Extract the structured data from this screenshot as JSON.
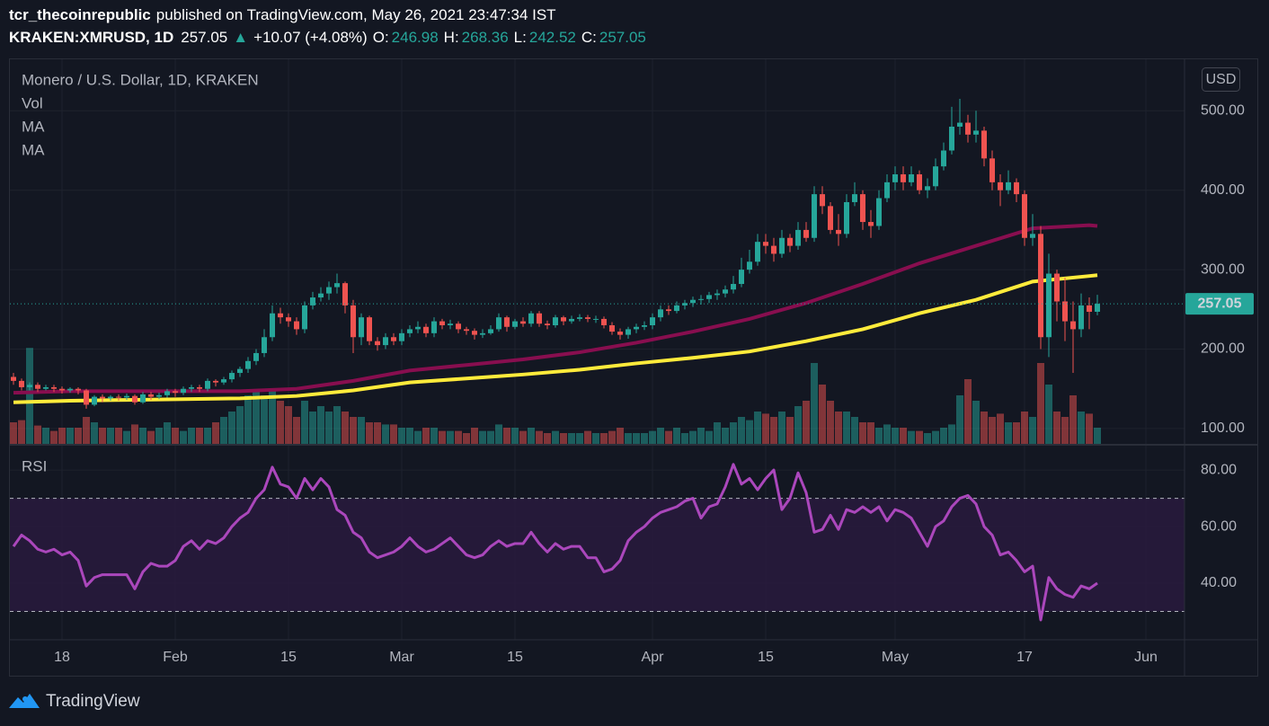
{
  "header": {
    "author": "tcr_thecoinrepublic",
    "published": "published on TradingView.com, May 26, 2021 23:47:34 IST",
    "symbol": "KRAKEN:XMRUSD, 1D",
    "last": "257.05",
    "arrow": "▲",
    "change": "+10.07 (+4.08%)",
    "o_label": "O:",
    "o": "246.98",
    "h_label": "H:",
    "h": "268.36",
    "l_label": "L:",
    "l": "242.52",
    "c_label": "C:",
    "c": "257.05"
  },
  "legend_title": "Monero / U.S. Dollar, 1D, KRAKEN",
  "currency": "USD",
  "brand": "TradingView",
  "chart_data": [
    {
      "type": "candlestick",
      "categories": [
        "Jan 12",
        "Jan 13",
        "Jan 14",
        "Jan 15",
        "Jan 16",
        "Jan 17",
        "Jan 18",
        "Jan 19",
        "Jan 20",
        "Jan 21",
        "Jan 22",
        "Jan 23",
        "Jan 24",
        "Jan 25",
        "Jan 26",
        "Jan 27",
        "Jan 28",
        "Jan 29",
        "Jan 30",
        "Jan 31",
        "Feb 1",
        "Feb 2",
        "Feb 3",
        "Feb 4",
        "Feb 5",
        "Feb 6",
        "Feb 7",
        "Feb 8",
        "Feb 9",
        "Feb 10",
        "Feb 11",
        "Feb 12",
        "Feb 13",
        "Feb 14",
        "Feb 15",
        "Feb 16",
        "Feb 17",
        "Feb 18",
        "Feb 19",
        "Feb 20",
        "Feb 21",
        "Feb 22",
        "Feb 23",
        "Feb 24",
        "Feb 25",
        "Feb 26",
        "Feb 27",
        "Feb 28",
        "Mar 1",
        "Mar 2",
        "Mar 3",
        "Mar 4",
        "Mar 5",
        "Mar 6",
        "Mar 7",
        "Mar 8",
        "Mar 9",
        "Mar 10",
        "Mar 11",
        "Mar 12",
        "Mar 13",
        "Mar 14",
        "Mar 15",
        "Mar 16",
        "Mar 17",
        "Mar 18",
        "Mar 19",
        "Mar 20",
        "Mar 21",
        "Mar 22",
        "Mar 23",
        "Mar 24",
        "Mar 25",
        "Mar 26",
        "Mar 27",
        "Mar 28",
        "Mar 29",
        "Mar 30",
        "Mar 31",
        "Apr 1",
        "Apr 2",
        "Apr 3",
        "Apr 4",
        "Apr 5",
        "Apr 6",
        "Apr 7",
        "Apr 8",
        "Apr 9",
        "Apr 10",
        "Apr 11",
        "Apr 12",
        "Apr 13",
        "Apr 14",
        "Apr 15",
        "Apr 16",
        "Apr 17",
        "Apr 18",
        "Apr 19",
        "Apr 20",
        "Apr 21",
        "Apr 22",
        "Apr 23",
        "Apr 24",
        "Apr 25",
        "Apr 26",
        "Apr 27",
        "Apr 28",
        "Apr 29",
        "Apr 30",
        "May 1",
        "May 2",
        "May 3",
        "May 4",
        "May 5",
        "May 6",
        "May 7",
        "May 8",
        "May 9",
        "May 10",
        "May 11",
        "May 12",
        "May 13",
        "May 14",
        "May 15",
        "May 16",
        "May 17",
        "May 18",
        "May 19",
        "May 20",
        "May 21",
        "May 22",
        "May 23",
        "May 24",
        "May 25",
        "May 26"
      ],
      "open": [
        165,
        160,
        152,
        155,
        150,
        152,
        150,
        148,
        150,
        148,
        130,
        140,
        138,
        140,
        139,
        141,
        133,
        143,
        140,
        142,
        147,
        145,
        150,
        152,
        150,
        160,
        158,
        162,
        170,
        175,
        185,
        195,
        215,
        245,
        240,
        235,
        225,
        255,
        265,
        270,
        278,
        283,
        255,
        215,
        240,
        210,
        205,
        215,
        210,
        220,
        225,
        228,
        220,
        235,
        230,
        232,
        225,
        223,
        218,
        220,
        225,
        240,
        228,
        235,
        232,
        245,
        232,
        230,
        240,
        235,
        238,
        240,
        238,
        238,
        230,
        222,
        218,
        225,
        228,
        230,
        240,
        250,
        248,
        255,
        258,
        262,
        263,
        268,
        270,
        275,
        282,
        300,
        310,
        335,
        330,
        320,
        340,
        330,
        350,
        340,
        395,
        380,
        350,
        345,
        385,
        395,
        360,
        355,
        390,
        410,
        420,
        410,
        420,
        400,
        405,
        430,
        450,
        480,
        485,
        470,
        475,
        440,
        410,
        400,
        410,
        395,
        340,
        345,
        215,
        295,
        260,
        235,
        225,
        255,
        246.98
      ],
      "high": [
        170,
        163,
        158,
        158,
        155,
        155,
        153,
        152,
        152,
        150,
        142,
        143,
        142,
        143,
        144,
        143,
        146,
        146,
        145,
        150,
        150,
        153,
        155,
        155,
        163,
        162,
        165,
        173,
        178,
        190,
        200,
        225,
        255,
        252,
        245,
        240,
        260,
        272,
        278,
        285,
        295,
        285,
        262,
        245,
        242,
        215,
        220,
        220,
        225,
        230,
        235,
        232,
        240,
        238,
        237,
        235,
        228,
        226,
        225,
        230,
        245,
        242,
        238,
        240,
        248,
        248,
        236,
        243,
        242,
        242,
        244,
        243,
        242,
        241,
        234,
        226,
        228,
        232,
        235,
        245,
        255,
        255,
        260,
        262,
        266,
        268,
        272,
        275,
        280,
        292,
        315,
        325,
        345,
        345,
        340,
        350,
        345,
        360,
        360,
        405,
        405,
        385,
        370,
        395,
        410,
        400,
        375,
        400,
        420,
        430,
        430,
        430,
        425,
        415,
        440,
        460,
        505,
        515,
        495,
        500,
        480,
        450,
        420,
        425,
        415,
        400,
        370,
        355,
        320,
        300,
        290,
        260,
        270,
        265,
        268.36
      ],
      "low": [
        155,
        148,
        148,
        146,
        148,
        146,
        144,
        145,
        143,
        125,
        128,
        133,
        135,
        135,
        136,
        130,
        131,
        136,
        137,
        139,
        140,
        142,
        146,
        146,
        147,
        153,
        155,
        158,
        165,
        170,
        180,
        190,
        210,
        232,
        228,
        218,
        220,
        250,
        260,
        262,
        270,
        245,
        195,
        205,
        205,
        198,
        200,
        205,
        205,
        215,
        220,
        215,
        215,
        225,
        225,
        220,
        218,
        212,
        214,
        218,
        222,
        222,
        225,
        228,
        228,
        228,
        225,
        227,
        230,
        232,
        235,
        234,
        233,
        226,
        218,
        212,
        213,
        220,
        224,
        225,
        235,
        243,
        245,
        250,
        253,
        256,
        258,
        262,
        265,
        270,
        278,
        295,
        305,
        320,
        310,
        315,
        322,
        325,
        335,
        335,
        370,
        345,
        330,
        340,
        380,
        350,
        340,
        350,
        385,
        400,
        400,
        405,
        395,
        390,
        400,
        425,
        445,
        470,
        460,
        460,
        430,
        400,
        380,
        395,
        385,
        330,
        330,
        200,
        190,
        235,
        210,
        170,
        215,
        225,
        242.52
      ],
      "close": [
        160,
        152,
        155,
        150,
        152,
        150,
        148,
        150,
        148,
        130,
        140,
        138,
        140,
        139,
        141,
        133,
        143,
        140,
        142,
        147,
        145,
        150,
        152,
        150,
        160,
        158,
        162,
        170,
        175,
        185,
        195,
        215,
        245,
        240,
        235,
        225,
        255,
        265,
        270,
        278,
        283,
        255,
        215,
        240,
        210,
        205,
        215,
        210,
        220,
        225,
        228,
        220,
        235,
        230,
        232,
        225,
        223,
        218,
        220,
        225,
        240,
        228,
        235,
        232,
        245,
        232,
        230,
        240,
        235,
        238,
        240,
        238,
        238,
        230,
        222,
        218,
        225,
        228,
        230,
        240,
        250,
        248,
        255,
        258,
        262,
        263,
        268,
        270,
        275,
        282,
        300,
        310,
        335,
        330,
        320,
        340,
        330,
        350,
        340,
        395,
        380,
        350,
        345,
        385,
        395,
        360,
        355,
        390,
        410,
        420,
        410,
        420,
        400,
        405,
        430,
        450,
        480,
        485,
        470,
        475,
        440,
        410,
        400,
        410,
        395,
        340,
        345,
        215,
        295,
        260,
        235,
        225,
        255,
        246.98,
        257.05
      ],
      "up_color": "#26a69a",
      "down_color": "#ef5350",
      "volume": {
        "name": "Vol",
        "values": [
          20,
          22,
          89,
          17,
          15,
          12,
          15,
          15,
          15,
          25,
          20,
          15,
          15,
          15,
          12,
          18,
          15,
          12,
          15,
          20,
          15,
          12,
          15,
          15,
          15,
          20,
          25,
          30,
          35,
          45,
          50,
          45,
          50,
          40,
          35,
          25,
          40,
          30,
          35,
          30,
          35,
          30,
          25,
          25,
          20,
          20,
          18,
          18,
          15,
          15,
          12,
          15,
          15,
          12,
          12,
          12,
          10,
          15,
          12,
          12,
          18,
          15,
          15,
          12,
          15,
          12,
          10,
          12,
          10,
          10,
          10,
          12,
          10,
          10,
          12,
          15,
          10,
          10,
          10,
          12,
          15,
          12,
          15,
          10,
          12,
          15,
          12,
          20,
          15,
          20,
          25,
          22,
          30,
          28,
          25,
          30,
          25,
          35,
          40,
          75,
          55,
          40,
          30,
          30,
          25,
          20,
          20,
          15,
          18,
          15,
          15,
          12,
          12,
          10,
          12,
          15,
          18,
          45,
          60,
          40,
          30,
          25,
          28,
          20,
          20,
          30,
          25,
          75,
          55,
          30,
          25,
          45,
          30,
          28,
          15
        ]
      },
      "series": [
        {
          "name": "MA",
          "color": "#880e4f",
          "x": [
            "Jan 12",
            "Jan 19",
            "Jan 26",
            "Feb 2",
            "Feb 9",
            "Feb 16",
            "Feb 23",
            "Mar 2",
            "Mar 9",
            "Mar 16",
            "Mar 23",
            "Mar 30",
            "Apr 6",
            "Apr 13",
            "Apr 20",
            "Apr 27",
            "May 4",
            "May 11",
            "May 18",
            "May 25",
            "May 26"
          ],
          "values": [
            145,
            147,
            147,
            147,
            147,
            150,
            160,
            173,
            180,
            187,
            196,
            208,
            222,
            238,
            258,
            282,
            308,
            330,
            352,
            356,
            355
          ]
        },
        {
          "name": "MA",
          "color": "#ffeb3b",
          "x": [
            "Jan 12",
            "Jan 19",
            "Jan 26",
            "Feb 2",
            "Feb 9",
            "Feb 16",
            "Feb 23",
            "Mar 2",
            "Mar 9",
            "Mar 16",
            "Mar 23",
            "Mar 30",
            "Apr 6",
            "Apr 13",
            "Apr 20",
            "Apr 27",
            "May 4",
            "May 11",
            "May 18",
            "May 25",
            "May 26"
          ],
          "values": [
            133,
            135,
            136,
            137,
            138,
            141,
            148,
            158,
            163,
            168,
            174,
            182,
            189,
            197,
            210,
            225,
            245,
            262,
            285,
            292,
            293
          ]
        }
      ],
      "price_line": {
        "value": 257.05,
        "label": "257.05"
      },
      "ylim": [
        80.7,
        564.8
      ],
      "yticks": [
        {
          "value": 100,
          "label": "100.00"
        },
        {
          "value": 200,
          "label": "200.00"
        },
        {
          "value": 300,
          "label": "300.00"
        },
        {
          "value": 400,
          "label": "400.00"
        },
        {
          "value": 500,
          "label": "500.00"
        }
      ],
      "xticks": [
        {
          "value": "Jan 18",
          "label": "18"
        },
        {
          "value": "Feb 1",
          "label": "Feb"
        },
        {
          "value": "Feb 15",
          "label": "15"
        },
        {
          "value": "Mar 1",
          "label": "Mar"
        },
        {
          "value": "Mar 15",
          "label": "15"
        },
        {
          "value": "Apr 1",
          "label": "Apr"
        },
        {
          "value": "Apr 15",
          "label": "15"
        },
        {
          "value": "May 1",
          "label": "May"
        },
        {
          "value": "May 17",
          "label": "17"
        },
        {
          "value": "Jun 1",
          "label": "Jun"
        }
      ],
      "grid": true
    },
    {
      "type": "line",
      "title": "RSI",
      "color": "#ab47bc",
      "values": [
        53,
        57,
        55,
        52,
        51,
        52,
        50,
        51,
        48,
        39,
        42,
        43,
        43,
        43,
        43,
        38,
        44,
        47,
        46,
        46,
        48,
        53,
        55,
        52,
        55,
        54,
        56,
        60,
        63,
        65,
        70,
        73,
        81,
        75,
        74,
        70,
        77,
        73,
        77,
        74,
        66,
        64,
        58,
        56,
        51,
        49,
        50,
        51,
        53,
        56,
        53,
        51,
        52,
        54,
        56,
        53,
        50,
        49,
        50,
        53,
        55,
        53,
        54,
        54,
        58,
        54,
        51,
        54,
        52,
        53,
        53,
        49,
        49,
        44,
        45,
        48,
        55,
        58,
        60,
        63,
        65,
        66,
        67,
        69,
        70,
        63,
        67,
        68,
        74,
        82,
        75,
        77,
        73,
        77,
        80,
        66,
        70,
        79,
        72,
        58,
        59,
        64,
        59,
        66,
        65,
        67,
        65,
        67,
        62,
        66,
        65,
        63,
        58,
        53,
        60,
        62,
        67,
        70,
        71,
        68,
        60,
        57,
        50,
        51,
        48,
        44,
        46,
        27,
        42,
        38,
        36,
        35,
        39,
        38,
        40
      ],
      "bands": [
        30,
        70
      ],
      "band_color": "#2a1a40",
      "ylim": [
        20,
        88.6
      ],
      "yticks": [
        {
          "value": 40,
          "label": "40.00"
        },
        {
          "value": 60,
          "label": "60.00"
        },
        {
          "value": 80,
          "label": "80.00"
        }
      ],
      "grid": true
    }
  ]
}
